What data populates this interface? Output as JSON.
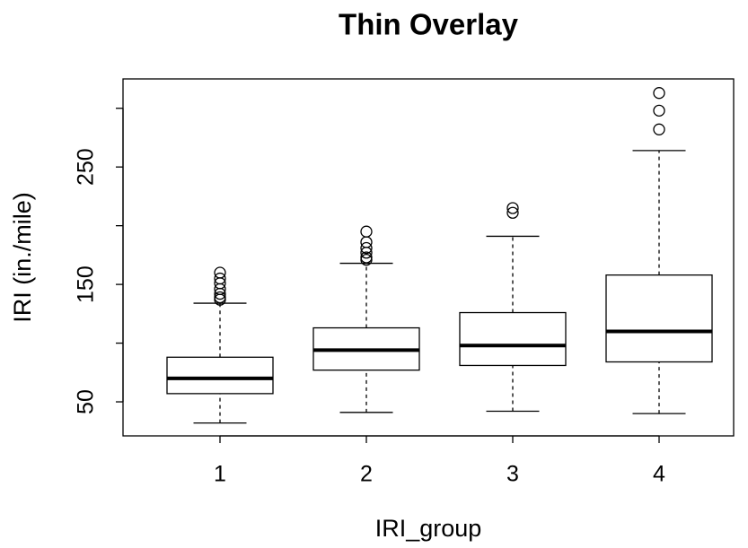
{
  "chart_data": {
    "type": "boxplot",
    "title": "Thin Overlay",
    "x_label": "IRI_group",
    "y_label": "IRI (in./mile)",
    "categories": [
      "1",
      "2",
      "3",
      "4"
    ],
    "boxes": [
      {
        "min": 32,
        "q1": 57,
        "median": 70,
        "q3": 88,
        "max": 134,
        "outliers": [
          160,
          155,
          151,
          146,
          142,
          139,
          137
        ]
      },
      {
        "min": 41,
        "q1": 77,
        "median": 94,
        "q3": 113,
        "max": 168,
        "outliers": [
          195,
          186,
          181,
          177,
          173,
          171
        ]
      },
      {
        "min": 42,
        "q1": 81,
        "median": 98,
        "q3": 126,
        "max": 191,
        "outliers": [
          215,
          211
        ]
      },
      {
        "min": 40,
        "q1": 84,
        "median": 110,
        "q3": 158,
        "max": 264,
        "outliers": [
          282,
          298,
          313
        ]
      }
    ],
    "color": "#000000",
    "ylim": [
      21,
      325
    ],
    "yticks": [
      50,
      100,
      150,
      200,
      250,
      300
    ]
  }
}
